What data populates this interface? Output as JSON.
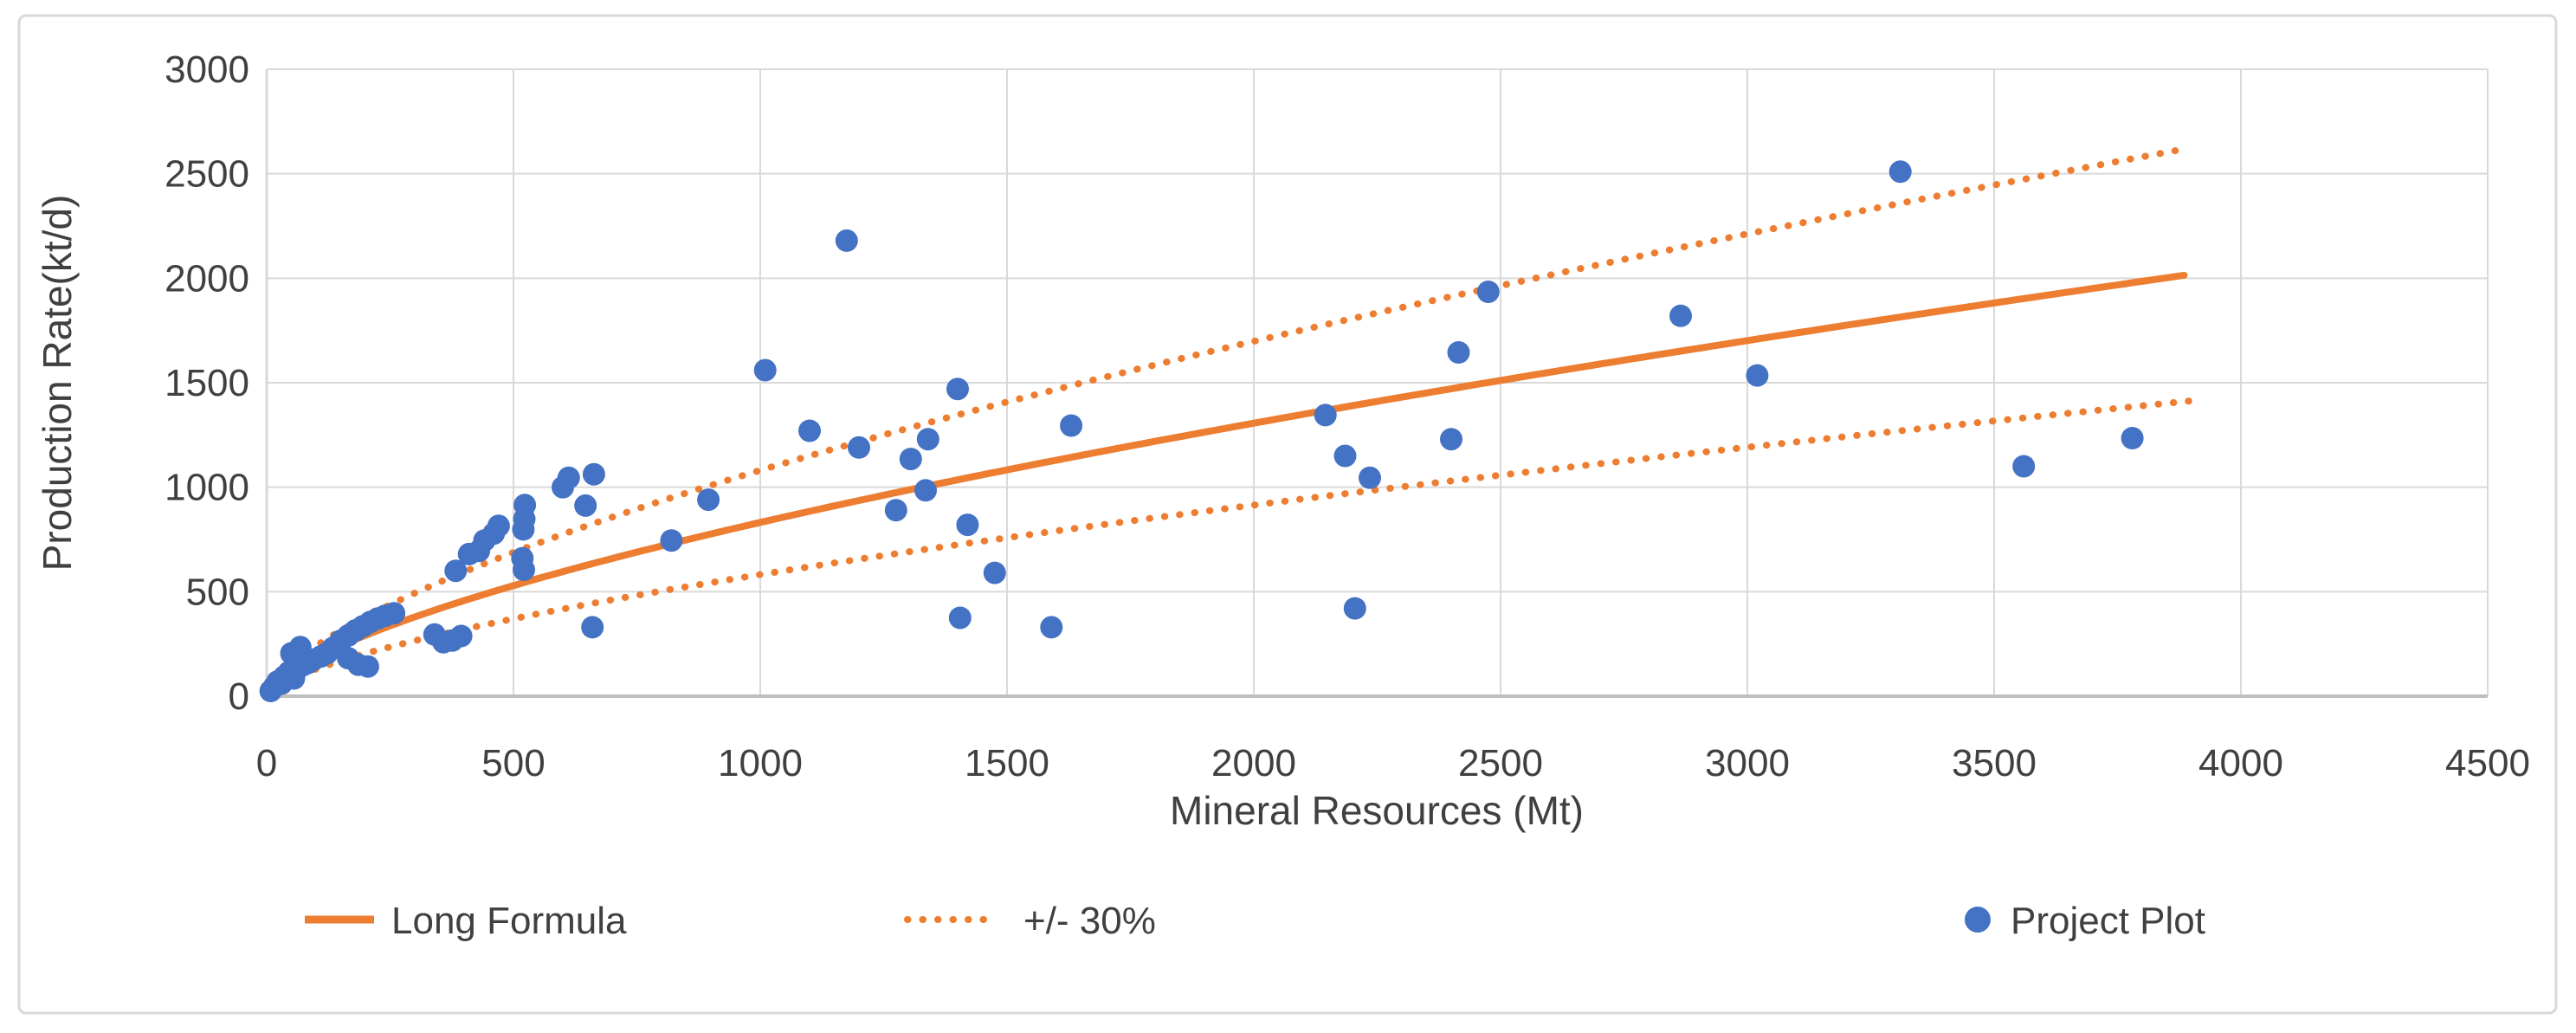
{
  "chart": {
    "axes": {
      "x": {
        "label": "Mineral Resources (Mt)",
        "min": 0,
        "max": 4500,
        "step": 500,
        "tick_labels": [
          "0",
          "500",
          "1000",
          "1500",
          "2000",
          "2500",
          "3000",
          "3500",
          "4000",
          "4500"
        ]
      },
      "y": {
        "label": "Production Rate(kt/d)",
        "min": 0,
        "max": 3000,
        "step": 500,
        "tick_labels": [
          "0",
          "500",
          "1000",
          "1500",
          "2000",
          "2500",
          "3000"
        ]
      }
    },
    "legend": [
      {
        "label": "Long Formula",
        "swatch": "solid-line",
        "color": "#ED7D31"
      },
      {
        "label": "+/- 30%",
        "swatch": "dotted-line",
        "color": "#ED7D31"
      },
      {
        "label": "Project Plot",
        "swatch": "circle-marker",
        "color": "#4472C4"
      }
    ],
    "colors": {
      "accent_orange": "#ED7D31",
      "accent_blue": "#4472C4",
      "gridline": "#D9D9D9",
      "axis_line": "#BFBFBF",
      "text": "#404040",
      "background": "#FFFFFF",
      "border": "#D9D9D9"
    }
  },
  "chart_data": {
    "type": "scatter",
    "title": "",
    "xlabel": "Mineral Resources (Mt)",
    "ylabel": "Production Rate(kt/d)",
    "xlim": [
      0,
      4500
    ],
    "ylim": [
      0,
      3000
    ],
    "grid": true,
    "legend_position": "bottom",
    "series": [
      {
        "name": "Long Formula",
        "type": "line",
        "style": "solid",
        "color": "#ED7D31",
        "model": "power",
        "formula": "P = 9.2 * M^0.652",
        "a": 9.2,
        "b": 0.652,
        "domain": [
          5,
          3900
        ]
      },
      {
        "name": "+/- 30%",
        "type": "line-band",
        "style": "dotted",
        "color": "#ED7D31",
        "multipliers": [
          1.3,
          0.7
        ],
        "domain": [
          15,
          3900
        ]
      },
      {
        "name": "Project Plot",
        "type": "scatter",
        "color": "#4472C4",
        "points": [
          [
            8,
            25
          ],
          [
            15,
            45
          ],
          [
            22,
            70
          ],
          [
            30,
            60
          ],
          [
            36,
            95
          ],
          [
            45,
            115
          ],
          [
            50,
            205
          ],
          [
            55,
            85
          ],
          [
            62,
            130
          ],
          [
            68,
            235
          ],
          [
            75,
            150
          ],
          [
            85,
            160
          ],
          [
            95,
            175
          ],
          [
            110,
            190
          ],
          [
            122,
            205
          ],
          [
            135,
            232
          ],
          [
            150,
            265
          ],
          [
            165,
            290
          ],
          [
            180,
            315
          ],
          [
            195,
            335
          ],
          [
            210,
            355
          ],
          [
            225,
            372
          ],
          [
            240,
            385
          ],
          [
            258,
            397
          ],
          [
            165,
            182
          ],
          [
            186,
            150
          ],
          [
            205,
            142
          ],
          [
            340,
            295
          ],
          [
            358,
            258
          ],
          [
            376,
            266
          ],
          [
            394,
            288
          ],
          [
            383,
            600
          ],
          [
            410,
            680
          ],
          [
            430,
            695
          ],
          [
            441,
            745
          ],
          [
            460,
            778
          ],
          [
            470,
            815
          ],
          [
            518,
            660
          ],
          [
            521,
            605
          ],
          [
            520,
            798
          ],
          [
            522,
            848
          ],
          [
            523,
            915
          ],
          [
            600,
            1000
          ],
          [
            612,
            1045
          ],
          [
            646,
            912
          ],
          [
            663,
            1062
          ],
          [
            660,
            330
          ],
          [
            820,
            745
          ],
          [
            895,
            940
          ],
          [
            1010,
            1560
          ],
          [
            1100,
            1270
          ],
          [
            1175,
            2180
          ],
          [
            1200,
            1190
          ],
          [
            1275,
            890
          ],
          [
            1305,
            1135
          ],
          [
            1335,
            985
          ],
          [
            1340,
            1230
          ],
          [
            1400,
            1470
          ],
          [
            1420,
            820
          ],
          [
            1475,
            590
          ],
          [
            1405,
            375
          ],
          [
            1590,
            330
          ],
          [
            1630,
            1295
          ],
          [
            2145,
            1345
          ],
          [
            2185,
            1150
          ],
          [
            2235,
            1045
          ],
          [
            2205,
            420
          ],
          [
            2400,
            1230
          ],
          [
            2415,
            1645
          ],
          [
            2475,
            1935
          ],
          [
            2865,
            1820
          ],
          [
            3020,
            1535
          ],
          [
            3310,
            2510
          ],
          [
            3560,
            1100
          ],
          [
            3780,
            1235
          ]
        ]
      }
    ]
  }
}
